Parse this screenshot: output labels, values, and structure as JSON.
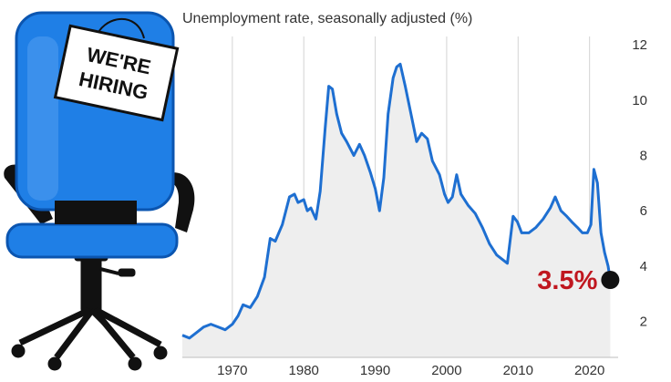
{
  "chart_data": {
    "type": "area",
    "title": "Unemployment rate, seasonally adjusted (%)",
    "xlabel": "",
    "ylabel": "",
    "xlim": [
      1963,
      2024
    ],
    "ylim": [
      0.7,
      12.3
    ],
    "x_ticks": [
      1970,
      1980,
      1990,
      2000,
      2010,
      2020
    ],
    "y_ticks": [
      2,
      4,
      6,
      8,
      10,
      12
    ],
    "grid": "vertical",
    "y_axis_side": "right",
    "colors": {
      "line": "#1e6fd1",
      "fill": "#eeeeee",
      "callout": "#c0171f",
      "marker": "#111111"
    },
    "annotation": {
      "text": "3.5%",
      "x": 2022.9,
      "y": 3.5
    },
    "series": [
      {
        "values": [
          [
            1963,
            1.5
          ],
          [
            1964,
            1.4
          ],
          [
            1965,
            1.6
          ],
          [
            1966,
            1.8
          ],
          [
            1967,
            1.9
          ],
          [
            1968,
            1.8
          ],
          [
            1969,
            1.7
          ],
          [
            1970,
            1.9
          ],
          [
            1970.8,
            2.2
          ],
          [
            1971.5,
            2.6
          ],
          [
            1972.5,
            2.5
          ],
          [
            1973.5,
            2.9
          ],
          [
            1974.5,
            3.6
          ],
          [
            1975.3,
            5.0
          ],
          [
            1976,
            4.9
          ],
          [
            1977,
            5.5
          ],
          [
            1978,
            6.5
          ],
          [
            1978.7,
            6.6
          ],
          [
            1979.2,
            6.3
          ],
          [
            1980,
            6.4
          ],
          [
            1980.5,
            6.0
          ],
          [
            1981,
            6.1
          ],
          [
            1981.7,
            5.7
          ],
          [
            1982.3,
            6.7
          ],
          [
            1983,
            9.0
          ],
          [
            1983.5,
            10.5
          ],
          [
            1984,
            10.4
          ],
          [
            1984.6,
            9.5
          ],
          [
            1985.3,
            8.8
          ],
          [
            1986,
            8.5
          ],
          [
            1987,
            8.0
          ],
          [
            1987.8,
            8.4
          ],
          [
            1988.5,
            8.0
          ],
          [
            1989.3,
            7.4
          ],
          [
            1990,
            6.8
          ],
          [
            1990.6,
            6.0
          ],
          [
            1991.2,
            7.2
          ],
          [
            1991.8,
            9.5
          ],
          [
            1992.5,
            10.8
          ],
          [
            1993,
            11.2
          ],
          [
            1993.5,
            11.3
          ],
          [
            1994.2,
            10.5
          ],
          [
            1995,
            9.5
          ],
          [
            1995.8,
            8.5
          ],
          [
            1996.5,
            8.8
          ],
          [
            1997.3,
            8.6
          ],
          [
            1998,
            7.8
          ],
          [
            1999,
            7.3
          ],
          [
            1999.7,
            6.6
          ],
          [
            2000.2,
            6.3
          ],
          [
            2000.8,
            6.5
          ],
          [
            2001.4,
            7.3
          ],
          [
            2002,
            6.6
          ],
          [
            2003,
            6.2
          ],
          [
            2004,
            5.9
          ],
          [
            2005,
            5.4
          ],
          [
            2006,
            4.8
          ],
          [
            2007,
            4.4
          ],
          [
            2008.5,
            4.1
          ],
          [
            2009.3,
            5.8
          ],
          [
            2009.9,
            5.6
          ],
          [
            2010.5,
            5.2
          ],
          [
            2011.5,
            5.2
          ],
          [
            2012.5,
            5.4
          ],
          [
            2013.5,
            5.7
          ],
          [
            2014.5,
            6.1
          ],
          [
            2015.2,
            6.5
          ],
          [
            2016,
            6.0
          ],
          [
            2016.8,
            5.8
          ],
          [
            2017.5,
            5.6
          ],
          [
            2018.3,
            5.4
          ],
          [
            2019,
            5.2
          ],
          [
            2019.7,
            5.2
          ],
          [
            2020.2,
            5.5
          ],
          [
            2020.6,
            7.5
          ],
          [
            2021.1,
            7.0
          ],
          [
            2021.6,
            5.2
          ],
          [
            2022.1,
            4.5
          ],
          [
            2022.6,
            4.0
          ],
          [
            2022.9,
            3.5
          ]
        ]
      }
    ]
  }
}
